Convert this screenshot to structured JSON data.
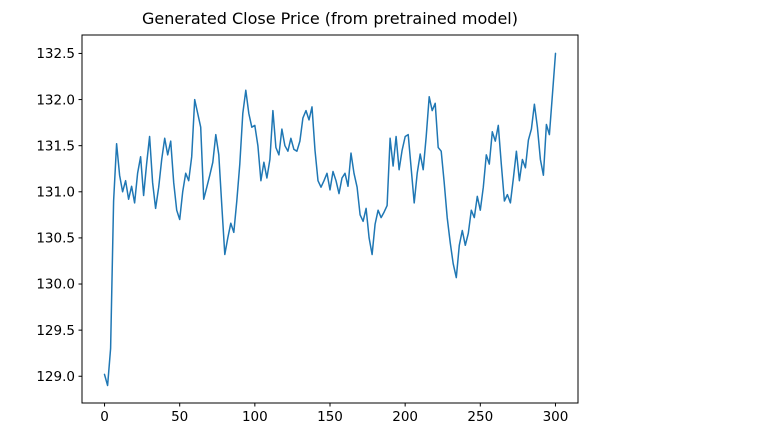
{
  "chart_data": {
    "type": "line",
    "title": "Generated Close Price (from pretrained model)",
    "xlabel": "",
    "ylabel": "",
    "grid": false,
    "legend": null,
    "line_color": "#1f77b4",
    "background_color": "#ffffff",
    "spine_color": "#000000",
    "series_name": "generated-close-price",
    "x_ticks": [
      0,
      50,
      100,
      150,
      200,
      250,
      300
    ],
    "x_tick_labels": [
      "0",
      "50",
      "100",
      "150",
      "200",
      "250",
      "300"
    ],
    "y_ticks": [
      129.0,
      129.5,
      130.0,
      130.5,
      131.0,
      131.5,
      132.0,
      132.5
    ],
    "y_tick_labels": [
      "129.0",
      "129.5",
      "130.0",
      "130.5",
      "131.0",
      "131.5",
      "132.0",
      "132.5"
    ],
    "xlim": [
      -15,
      315
    ],
    "ylim": [
      128.71,
      132.7
    ],
    "x_start": 0,
    "x_step": 2,
    "values": [
      129.02,
      128.9,
      129.3,
      130.9,
      131.52,
      131.18,
      131.0,
      131.12,
      130.92,
      131.06,
      130.88,
      131.2,
      131.38,
      130.96,
      131.3,
      131.6,
      131.1,
      130.82,
      131.05,
      131.35,
      131.58,
      131.4,
      131.55,
      131.1,
      130.8,
      130.7,
      131.0,
      131.2,
      131.12,
      131.38,
      132.0,
      131.85,
      131.7,
      130.92,
      131.05,
      131.18,
      131.32,
      131.62,
      131.4,
      130.85,
      130.32,
      130.5,
      130.66,
      130.56,
      130.9,
      131.3,
      131.85,
      132.1,
      131.85,
      131.7,
      131.72,
      131.5,
      131.12,
      131.32,
      131.15,
      131.35,
      131.88,
      131.48,
      131.4,
      131.68,
      131.5,
      131.44,
      131.58,
      131.46,
      131.44,
      131.55,
      131.8,
      131.88,
      131.78,
      131.92,
      131.45,
      131.12,
      131.05,
      131.12,
      131.2,
      131.02,
      131.22,
      131.12,
      130.98,
      131.15,
      131.2,
      131.06,
      131.42,
      131.2,
      131.05,
      130.75,
      130.68,
      130.82,
      130.5,
      130.32,
      130.65,
      130.8,
      130.72,
      130.78,
      130.85,
      131.58,
      131.28,
      131.6,
      131.24,
      131.45,
      131.6,
      131.62,
      131.25,
      130.88,
      131.2,
      131.41,
      131.24,
      131.6,
      132.03,
      131.88,
      131.96,
      131.48,
      131.44,
      131.1,
      130.72,
      130.45,
      130.22,
      130.07,
      130.42,
      130.58,
      130.42,
      130.55,
      130.8,
      130.72,
      130.95,
      130.8,
      131.05,
      131.4,
      131.3,
      131.65,
      131.55,
      131.72,
      131.3,
      130.9,
      130.97,
      130.88,
      131.15,
      131.44,
      131.12,
      131.35,
      131.26,
      131.56,
      131.68,
      131.95,
      131.7,
      131.35,
      131.18,
      131.73,
      131.62,
      132.05,
      132.5
    ]
  }
}
